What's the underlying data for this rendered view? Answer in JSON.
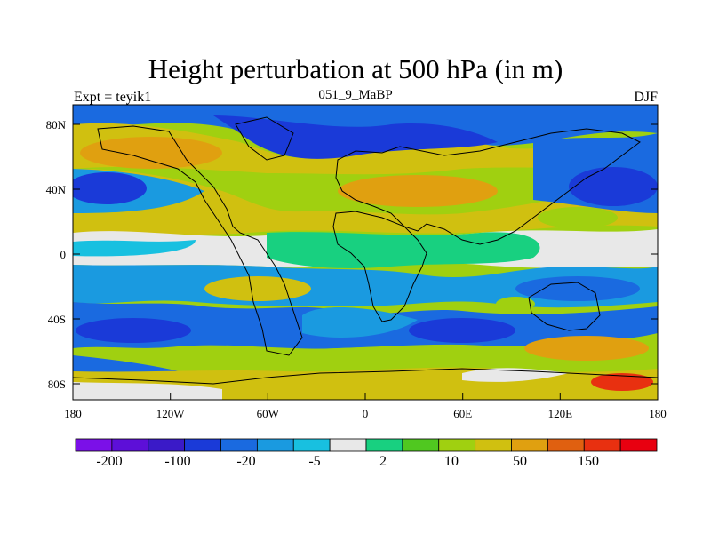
{
  "title": "Height perturbation at 500 hPa (in m)",
  "subtitle_left": "Expt = teyik1",
  "subtitle_center": "051_9_MaBP",
  "subtitle_right": "DJF",
  "y_ticks": [
    "80N",
    "40N",
    "0",
    "40S",
    "80S"
  ],
  "x_ticks": [
    "180",
    "120W",
    "60W",
    "0",
    "60E",
    "120E",
    "180"
  ],
  "colorbar": {
    "colors": [
      "#7b10e8",
      "#5d0fd8",
      "#3a1ac8",
      "#1a3ad8",
      "#1a6ae0",
      "#1a9ae0",
      "#18c0e0",
      "#e8e8e8",
      "#18d080",
      "#50c820",
      "#a0d010",
      "#d0c010",
      "#e0a010",
      "#e06010",
      "#e83010",
      "#e80010"
    ],
    "labels": [
      "-200",
      "-100",
      "-20",
      "-5",
      "2",
      "10",
      "50",
      "150"
    ]
  },
  "bands": [
    {
      "name": "arctic-band",
      "color": "#1a6ae0"
    },
    {
      "name": "north-high",
      "color": "#d0c010"
    },
    {
      "name": "north-core",
      "color": "#e0a010"
    },
    {
      "name": "midlat-low",
      "color": "#1a9ae0"
    },
    {
      "name": "midlat-core",
      "color": "#1a3ad8"
    },
    {
      "name": "tropics",
      "color": "#50c820"
    },
    {
      "name": "southern-low",
      "color": "#1a6ae0"
    },
    {
      "name": "southern-high",
      "color": "#a0d010"
    },
    {
      "name": "antarctic",
      "color": "#d0c010"
    }
  ]
}
